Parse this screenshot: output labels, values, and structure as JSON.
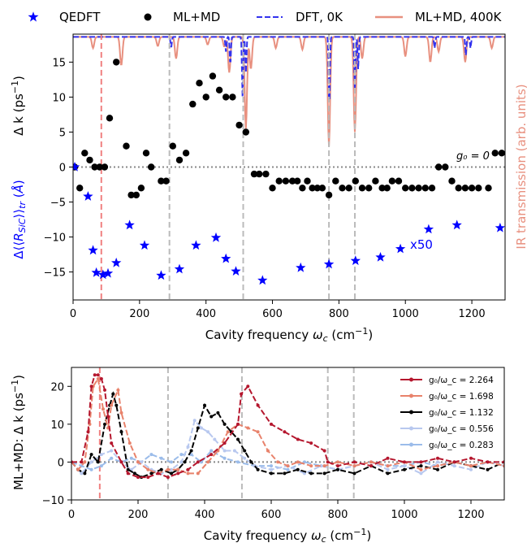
{
  "chart_data": [
    {
      "type": "scatter",
      "legend": [
        {
          "label": "QEDFT",
          "color": "#0000ff",
          "marker": "star"
        },
        {
          "label": "ML+MD",
          "color": "#000000",
          "marker": "circle"
        },
        {
          "label": "DFT, 0K",
          "color": "#3333ee",
          "marker": "dashed-line"
        },
        {
          "label": "ML+MD, 400K",
          "color": "#e8907f",
          "marker": "line"
        }
      ],
      "legend_position": "top",
      "xlabel": "Cavity frequency ω_c (cm⁻¹)",
      "ylabel": "Δ k (ps⁻¹)",
      "ylabel_secondary": "Δ⟨⟨R_SiC⟩⟩_tr (Å)",
      "ylabel_right": "IR transmission (arb. units)",
      "xlim": [
        0,
        1300
      ],
      "ylim": [
        -19,
        19
      ],
      "xticks": [
        0,
        200,
        400,
        600,
        800,
        1000,
        1200
      ],
      "yticks": [
        -15,
        -10,
        -5,
        0,
        5,
        10,
        15
      ],
      "annotations": {
        "g0": "g₀ = 0",
        "scale": "x50"
      },
      "ml_md": {
        "x": [
          5,
          20,
          35,
          50,
          65,
          80,
          95,
          110,
          130,
          160,
          175,
          190,
          205,
          220,
          235,
          265,
          280,
          300,
          320,
          340,
          360,
          380,
          400,
          420,
          440,
          460,
          480,
          500,
          520,
          545,
          560,
          580,
          600,
          620,
          640,
          660,
          675,
          690,
          705,
          720,
          735,
          750,
          770,
          790,
          810,
          830,
          850,
          870,
          890,
          910,
          930,
          945,
          960,
          980,
          1000,
          1020,
          1040,
          1060,
          1080,
          1100,
          1120,
          1140,
          1160,
          1180,
          1200,
          1220,
          1250,
          1270,
          1290
        ],
        "y": [
          0,
          -3,
          2,
          1,
          0,
          0,
          0,
          7,
          15,
          3,
          -4,
          -4,
          -3,
          2,
          0,
          -2,
          -2,
          3,
          1,
          2,
          9,
          12,
          10,
          13,
          11,
          10,
          10,
          6,
          5,
          -1,
          -1,
          -1,
          -3,
          -2,
          -2,
          -2,
          -2,
          -3,
          -2,
          -3,
          -3,
          -3,
          -4,
          -2,
          -3,
          -3,
          -2,
          -3,
          -3,
          -2,
          -3,
          -3,
          -2,
          -2,
          -3,
          -3,
          -3,
          -3,
          -3,
          0,
          0,
          -2,
          -3,
          -3,
          -3,
          -3,
          -3,
          2,
          2
        ]
      },
      "qedft": {
        "x": [
          5,
          45,
          60,
          70,
          90,
          105,
          130,
          170,
          215,
          265,
          320,
          370,
          430,
          460,
          490,
          570,
          685,
          770,
          850,
          925,
          985,
          1070,
          1155,
          1285
        ],
        "y": [
          0,
          -4.2,
          -11.9,
          -15.1,
          -15.4,
          -15.2,
          -13.7,
          -8.3,
          -11.2,
          -15.5,
          -14.6,
          -11.2,
          -10.1,
          -13.1,
          -14.9,
          -16.2,
          -14.4,
          -13.9,
          -13.4,
          -12.9,
          -11.7,
          -8.9,
          -8.3,
          -8.7
        ]
      },
      "vertical_lines": [
        {
          "x": 85,
          "color": "#f08080"
        },
        {
          "x": 290,
          "color": "#bbbbbb"
        },
        {
          "x": 512,
          "color": "#bbbbbb"
        },
        {
          "x": 770,
          "color": "#bbbbbb"
        },
        {
          "x": 848,
          "color": "#bbbbbb"
        }
      ],
      "ir_dips_400k": [
        {
          "x": 60,
          "y": 17.0
        },
        {
          "x": 145,
          "y": 14.5
        },
        {
          "x": 255,
          "y": 17.3
        },
        {
          "x": 310,
          "y": 15.5
        },
        {
          "x": 405,
          "y": 17.5
        },
        {
          "x": 455,
          "y": 17.2
        },
        {
          "x": 470,
          "y": 13.5
        },
        {
          "x": 520,
          "y": 5.5
        },
        {
          "x": 535,
          "y": 14.0
        },
        {
          "x": 610,
          "y": 17.0
        },
        {
          "x": 690,
          "y": 16.8
        },
        {
          "x": 770,
          "y": 3.0
        },
        {
          "x": 848,
          "y": 5.0
        },
        {
          "x": 870,
          "y": 15.5
        },
        {
          "x": 1000,
          "y": 15.8
        },
        {
          "x": 1075,
          "y": 15.0
        },
        {
          "x": 1100,
          "y": 16.5
        },
        {
          "x": 1180,
          "y": 15.0
        },
        {
          "x": 1260,
          "y": 17.0
        }
      ],
      "ir_dips_0k": [
        {
          "x": 295,
          "y": 17.0
        },
        {
          "x": 460,
          "y": 16.5
        },
        {
          "x": 473,
          "y": 14.5
        },
        {
          "x": 510,
          "y": 10.0
        },
        {
          "x": 520,
          "y": 13.5
        },
        {
          "x": 771,
          "y": 8.0
        },
        {
          "x": 848,
          "y": 11.0
        },
        {
          "x": 858,
          "y": 14.0
        },
        {
          "x": 1088,
          "y": 17.0
        },
        {
          "x": 1182,
          "y": 16.0
        },
        {
          "x": 1196,
          "y": 17.0
        }
      ]
    },
    {
      "type": "line",
      "xlabel": "Cavity frequency ω_c (cm⁻¹)",
      "ylabel": "ML+MD: Δ k (ps⁻¹)",
      "xlim": [
        0,
        1300
      ],
      "ylim": [
        -10,
        25
      ],
      "xticks": [
        0,
        200,
        400,
        600,
        800,
        1000,
        1200
      ],
      "yticks": [
        -10,
        0,
        10,
        20
      ],
      "legend_position": "top-right",
      "vertical_lines": [
        {
          "x": 85,
          "color": "#f08080"
        },
        {
          "x": 290,
          "color": "#bbbbbb"
        },
        {
          "x": 512,
          "color": "#bbbbbb"
        },
        {
          "x": 770,
          "color": "#bbbbbb"
        },
        {
          "x": 848,
          "color": "#bbbbbb"
        }
      ],
      "series": [
        {
          "name": "g₀/ω_c = 2.264",
          "color": "#b5172e",
          "x": [
            0,
            30,
            50,
            60,
            70,
            80,
            90,
            100,
            110,
            120,
            150,
            170,
            200,
            230,
            260,
            290,
            320,
            350,
            380,
            420,
            460,
            500,
            510,
            530,
            560,
            600,
            640,
            680,
            720,
            760,
            770,
            800,
            850,
            900,
            950,
            1000,
            1050,
            1100,
            1150,
            1200,
            1250,
            1300
          ],
          "y": [
            0,
            0,
            8,
            20,
            23,
            23,
            22,
            19,
            12,
            5,
            0,
            -3,
            -4,
            -4,
            -3,
            -4,
            -3,
            -2,
            0,
            2,
            5,
            10,
            18,
            20,
            15,
            10,
            8,
            6,
            5,
            3,
            0,
            -1,
            0,
            -1,
            1,
            0,
            0,
            1,
            0,
            1,
            0,
            0
          ]
        },
        {
          "name": "g₀/ω_c = 1.698",
          "color": "#e8826b",
          "x": [
            0,
            20,
            40,
            55,
            65,
            80,
            95,
            110,
            120,
            140,
            150,
            175,
            200,
            230,
            260,
            290,
            320,
            350,
            380,
            410,
            440,
            470,
            500,
            530,
            560,
            590,
            620,
            650,
            680,
            720,
            760,
            800,
            850,
            900,
            950,
            1000,
            1050,
            1100,
            1150,
            1200,
            1250,
            1300
          ],
          "y": [
            0,
            -2,
            0,
            10,
            20,
            22,
            14,
            9,
            15,
            19,
            13,
            5,
            0,
            -2,
            -3,
            -2,
            -2,
            -3,
            -3,
            0,
            3,
            8,
            10,
            9,
            8,
            3,
            0,
            -1,
            0,
            -1,
            -1,
            0,
            -1,
            0,
            -1,
            0,
            -2,
            -1,
            0,
            -1,
            0,
            -1
          ]
        },
        {
          "name": "g₀/ω_c = 1.132",
          "color": "#000000",
          "x": [
            0,
            20,
            40,
            60,
            80,
            100,
            115,
            125,
            135,
            150,
            170,
            190,
            210,
            240,
            270,
            300,
            320,
            340,
            360,
            380,
            400,
            420,
            440,
            460,
            480,
            500,
            520,
            540,
            560,
            600,
            640,
            680,
            720,
            760,
            800,
            850,
            900,
            950,
            1000,
            1050,
            1100,
            1150,
            1200,
            1250,
            1300
          ],
          "y": [
            0,
            -2,
            -3,
            2,
            0,
            10,
            15,
            18,
            15,
            8,
            -2,
            -3,
            -4,
            -3,
            -2,
            -3,
            -2,
            0,
            3,
            9,
            15,
            12,
            13,
            10,
            8,
            6,
            3,
            0,
            -2,
            -3,
            -3,
            -2,
            -3,
            -3,
            -2,
            -3,
            -1,
            -3,
            -2,
            -1,
            -2,
            0,
            -1,
            -2,
            0
          ]
        },
        {
          "name": "g₀/ω_c = 0.556",
          "color": "#b8c8ef",
          "x": [
            0,
            30,
            60,
            90,
            120,
            150,
            180,
            210,
            240,
            270,
            300,
            330,
            350,
            370,
            390,
            410,
            430,
            460,
            490,
            520,
            550,
            600,
            650,
            700,
            750,
            800,
            850,
            900,
            950,
            1000,
            1050,
            1100,
            1150,
            1200,
            1250,
            1300
          ],
          "y": [
            0,
            -3,
            0,
            2,
            3,
            0,
            -2,
            0,
            -2,
            -3,
            -2,
            0,
            4,
            11,
            9,
            8,
            6,
            3,
            3,
            1,
            -1,
            -2,
            -1,
            -3,
            -1,
            -2,
            -1,
            0,
            -2,
            -1,
            -3,
            0,
            -1,
            -2,
            0,
            -1
          ]
        },
        {
          "name": "g₀/ω_c = 0.283",
          "color": "#9bbcea",
          "x": [
            0,
            30,
            60,
            90,
            120,
            150,
            180,
            210,
            240,
            270,
            300,
            330,
            360,
            390,
            420,
            460,
            500,
            550,
            600,
            650,
            700,
            750,
            800,
            850,
            900,
            950,
            1000,
            1050,
            1100,
            1150,
            1200,
            1250,
            1300
          ],
          "y": [
            0,
            -1,
            -2,
            -1,
            1,
            0,
            1,
            0,
            2,
            1,
            0,
            2,
            2,
            0,
            3,
            1,
            0,
            -1,
            -1,
            -2,
            0,
            -1,
            -2,
            -1,
            0,
            -1,
            -1,
            0,
            -1,
            0,
            -1,
            0,
            -1
          ]
        }
      ]
    }
  ]
}
